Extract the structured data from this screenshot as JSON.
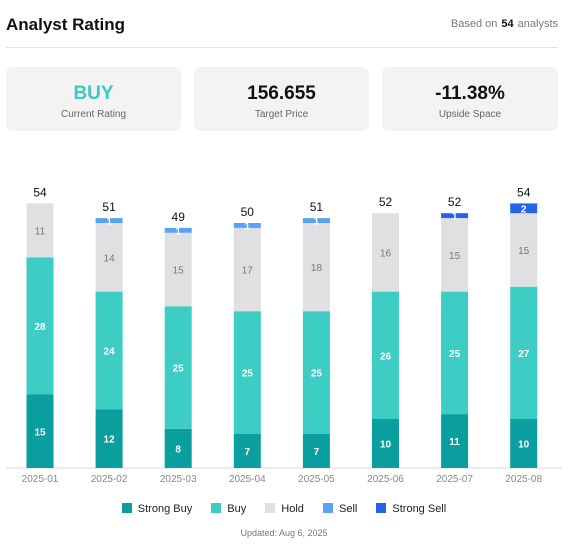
{
  "header": {
    "title": "Analyst Rating",
    "based_prefix": "Based on",
    "analyst_count": "54",
    "based_suffix": "analysts"
  },
  "cards": [
    {
      "value": "BUY",
      "label": "Current Rating"
    },
    {
      "value": "156.655",
      "label": "Target Price"
    },
    {
      "value": "-11.38%",
      "label": "Upside Space"
    }
  ],
  "chart_data": {
    "type": "bar",
    "stacked": true,
    "categories": [
      "2025-01",
      "2025-02",
      "2025-03",
      "2025-04",
      "2025-05",
      "2025-06",
      "2025-07",
      "2025-08"
    ],
    "totals": [
      54,
      51,
      49,
      50,
      51,
      52,
      52,
      54
    ],
    "series": [
      {
        "name": "Strong Buy",
        "color": "#0b9e9e",
        "values": [
          15,
          12,
          8,
          7,
          7,
          10,
          11,
          10
        ]
      },
      {
        "name": "Buy",
        "color": "#3ecdc5",
        "values": [
          28,
          24,
          25,
          25,
          25,
          26,
          25,
          27
        ]
      },
      {
        "name": "Hold",
        "color": "#e0e0e2",
        "values": [
          11,
          14,
          15,
          17,
          18,
          16,
          15,
          15
        ]
      },
      {
        "name": "Sell",
        "color": "#5aa2f2",
        "values": [
          0,
          1,
          1,
          1,
          1,
          0,
          0,
          0
        ]
      },
      {
        "name": "Strong Sell",
        "color": "#2563e8",
        "values": [
          0,
          0,
          0,
          0,
          0,
          0,
          1,
          2
        ]
      }
    ],
    "ylim": [
      0,
      54
    ]
  },
  "legend_items": [
    "Strong Buy",
    "Buy",
    "Hold",
    "Sell",
    "Strong Sell"
  ],
  "updated": "Updated: Aug 6, 2025"
}
